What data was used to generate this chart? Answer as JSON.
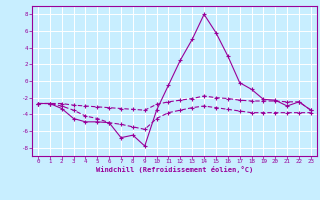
{
  "x": [
    0,
    1,
    2,
    3,
    4,
    5,
    6,
    7,
    8,
    9,
    10,
    11,
    12,
    13,
    14,
    15,
    16,
    17,
    18,
    19,
    20,
    21,
    22,
    23
  ],
  "line1": [
    -2.7,
    -2.7,
    -3.3,
    -4.5,
    -4.9,
    -4.9,
    -5.0,
    -6.8,
    -6.5,
    -7.8,
    -3.5,
    -0.5,
    2.5,
    5.0,
    8.0,
    5.8,
    3.0,
    -0.2,
    -1.0,
    -2.2,
    -2.3,
    -3.0,
    -2.5,
    -3.5
  ],
  "line2": [
    -2.7,
    -2.7,
    -2.7,
    -2.9,
    -3.0,
    -3.1,
    -3.2,
    -3.3,
    -3.4,
    -3.5,
    -2.8,
    -2.5,
    -2.3,
    -2.1,
    -1.8,
    -2.0,
    -2.1,
    -2.3,
    -2.4,
    -2.4,
    -2.4,
    -2.5,
    -2.5,
    -3.5
  ],
  "line3": [
    -2.7,
    -2.7,
    -3.0,
    -3.5,
    -4.2,
    -4.5,
    -5.0,
    -5.2,
    -5.5,
    -5.8,
    -4.5,
    -3.8,
    -3.5,
    -3.2,
    -3.0,
    -3.2,
    -3.4,
    -3.6,
    -3.8,
    -3.8,
    -3.8,
    -3.8,
    -3.8,
    -3.8
  ],
  "color": "#990099",
  "bg_color": "#c8eeff",
  "grid_color": "#ffffff",
  "xlabel": "Windchill (Refroidissement éolien,°C)",
  "ylim": [
    -9,
    9
  ],
  "xlim": [
    -0.5,
    23.5
  ],
  "yticks": [
    -8,
    -6,
    -4,
    -2,
    0,
    2,
    4,
    6,
    8
  ],
  "xticks": [
    0,
    1,
    2,
    3,
    4,
    5,
    6,
    7,
    8,
    9,
    10,
    11,
    12,
    13,
    14,
    15,
    16,
    17,
    18,
    19,
    20,
    21,
    22,
    23
  ]
}
